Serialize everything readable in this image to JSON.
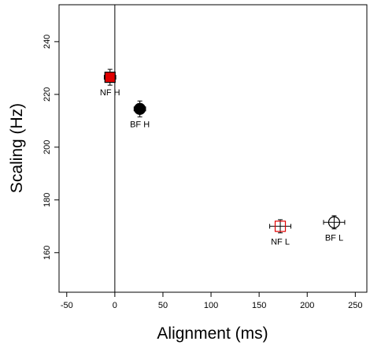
{
  "chart_data": {
    "type": "scatter",
    "title": "",
    "xlabel": "Alignment (ms)",
    "ylabel": "Scaling (Hz)",
    "xlim": [
      -58,
      262
    ],
    "ylim": [
      145,
      254
    ],
    "xticks": [
      -50,
      0,
      50,
      100,
      150,
      200,
      250
    ],
    "yticks": [
      160,
      180,
      200,
      220,
      240
    ],
    "xtick_labels": [
      "-50",
      "0",
      "50",
      "100",
      "150",
      "200",
      "250"
    ],
    "ytick_labels": [
      "160",
      "180",
      "200",
      "220",
      "240"
    ],
    "reference_lines": [
      {
        "axis": "x",
        "value": 0
      }
    ],
    "grid": false,
    "legend": "none",
    "points": [
      {
        "label": "NF H",
        "x": -5,
        "y": 226.5,
        "x_err": 6,
        "y_err": 3,
        "marker": "filled-square",
        "fill": "#e00000",
        "stroke": "#000000"
      },
      {
        "label": "BF H",
        "x": 26,
        "y": 214.5,
        "x_err": 6,
        "y_err": 3,
        "marker": "filled-circle",
        "fill": "#000000",
        "stroke": "#000000"
      },
      {
        "label": "NF L",
        "x": 172,
        "y": 170,
        "x_err": 11,
        "y_err": 2.5,
        "marker": "open-square",
        "fill": "none",
        "stroke": "#e00000"
      },
      {
        "label": "BF L",
        "x": 228,
        "y": 171.5,
        "x_err": 11,
        "y_err": 2.5,
        "marker": "open-circle",
        "fill": "none",
        "stroke": "#000000"
      }
    ]
  }
}
